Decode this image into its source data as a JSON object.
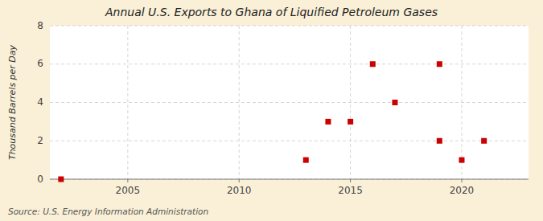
{
  "chart_data": {
    "type": "scatter",
    "title": "Annual U.S. Exports to Ghana of Liquified Petroleum Gases",
    "ylabel": "Thousand Barrels per Day",
    "source": "Source: U.S. Energy Information Administration",
    "x": [
      2002,
      2013,
      2014,
      2015,
      2016,
      2017,
      2019,
      2019,
      2020,
      2021
    ],
    "values": [
      0,
      1,
      3,
      3,
      6,
      4,
      2,
      6,
      1,
      2
    ],
    "color": "#cc0000",
    "marker": "square",
    "xlim": [
      2001.5,
      2023
    ],
    "ylim": [
      0,
      8
    ],
    "xticks": [
      2005,
      2010,
      2015,
      2020
    ],
    "yticks": [
      0,
      2,
      4,
      6,
      8
    ],
    "grid": true
  }
}
